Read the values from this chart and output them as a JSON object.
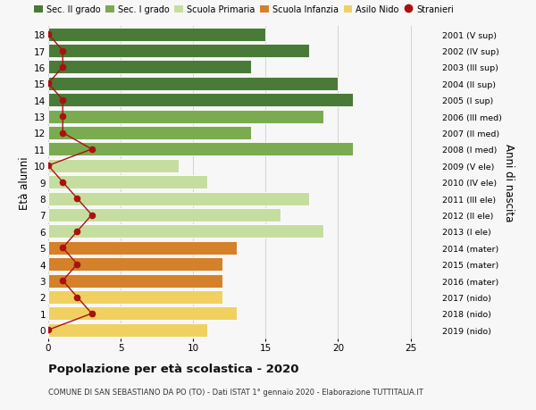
{
  "ages": [
    18,
    17,
    16,
    15,
    14,
    13,
    12,
    11,
    10,
    9,
    8,
    7,
    6,
    5,
    4,
    3,
    2,
    1,
    0
  ],
  "labels_right": [
    "2001 (V sup)",
    "2002 (IV sup)",
    "2003 (III sup)",
    "2004 (II sup)",
    "2005 (I sup)",
    "2006 (III med)",
    "2007 (II med)",
    "2008 (I med)",
    "2009 (V ele)",
    "2010 (IV ele)",
    "2011 (III ele)",
    "2012 (II ele)",
    "2013 (I ele)",
    "2014 (mater)",
    "2015 (mater)",
    "2016 (mater)",
    "2017 (nido)",
    "2018 (nido)",
    "2019 (nido)"
  ],
  "bar_values": [
    15,
    18,
    14,
    20,
    21,
    19,
    14,
    21,
    9,
    11,
    18,
    16,
    19,
    13,
    12,
    12,
    12,
    13,
    11
  ],
  "bar_colors": [
    "#4a7a38",
    "#4a7a38",
    "#4a7a38",
    "#4a7a38",
    "#4a7a38",
    "#7aab50",
    "#7aab50",
    "#7aab50",
    "#c5dea0",
    "#c5dea0",
    "#c5dea0",
    "#c5dea0",
    "#c5dea0",
    "#d4812a",
    "#d4812a",
    "#d4812a",
    "#f0d060",
    "#f0d060",
    "#f0d060"
  ],
  "stranieri_values": [
    0,
    1,
    1,
    0,
    1,
    1,
    1,
    3,
    0,
    1,
    2,
    3,
    2,
    1,
    2,
    1,
    2,
    3,
    0
  ],
  "legend_labels": [
    "Sec. II grado",
    "Sec. I grado",
    "Scuola Primaria",
    "Scuola Infanzia",
    "Asilo Nido",
    "Stranieri"
  ],
  "legend_colors": [
    "#4a7a38",
    "#7aab50",
    "#c5dea0",
    "#d4812a",
    "#f0d060",
    "#cc0000"
  ],
  "ylabel": "Età alunni",
  "ylabel_right": "Anni di nascita",
  "title": "Popolazione per età scolastica - 2020",
  "subtitle": "COMUNE DI SAN SEBASTIANO DA PO (TO) - Dati ISTAT 1° gennaio 2020 - Elaborazione TUTTITALIA.IT",
  "xlim": [
    0,
    27
  ],
  "xticks": [
    0,
    5,
    10,
    15,
    20,
    25
  ],
  "grid_color": "#cccccc",
  "bg_color": "#f7f7f7",
  "stranieri_color": "#aa1111",
  "bar_height": 0.82
}
